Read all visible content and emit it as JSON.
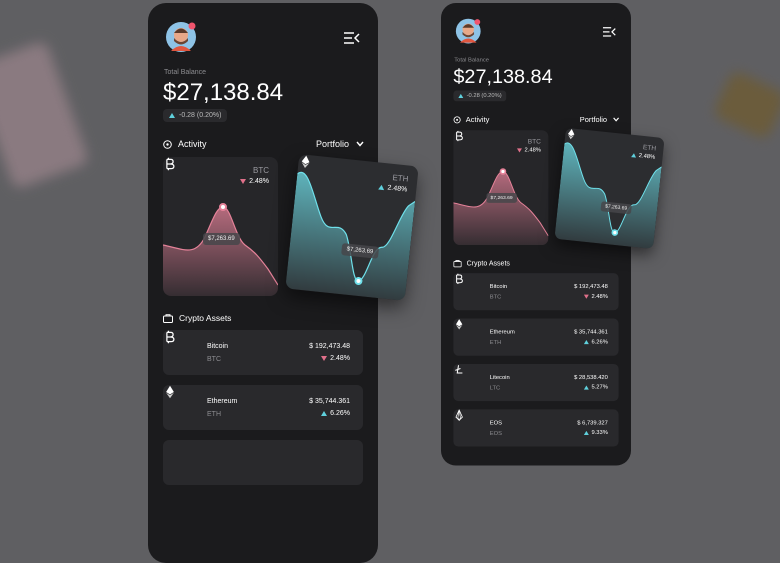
{
  "phones": [
    {
      "total_label": "Total Balance",
      "total": "$27,138.84",
      "change": "-0.28 (0.20%)",
      "activity": "Activity",
      "portfolio": "Portfolio",
      "cards": [
        {
          "symbol": "BTC",
          "change": "2.48%",
          "trend": "down",
          "price": "$7,263.69"
        },
        {
          "symbol": "ETH",
          "change": "2.48%",
          "trend": "up",
          "price": "$7,263.69"
        }
      ],
      "assets_title": "Crypto Assets",
      "assets": [
        {
          "name": "Bitcoin",
          "symbol": "BTC",
          "value": "$ 192,473.48",
          "change": "2.48%",
          "trend": "down"
        },
        {
          "name": "Ethereum",
          "symbol": "ETH",
          "value": "$ 35,744.361",
          "change": "6.26%",
          "trend": "up"
        }
      ]
    },
    {
      "total_label": "Total Balance",
      "total": "$27,138.84",
      "change": "-0.28 (0.20%)",
      "activity": "Activity",
      "portfolio": "Portfolio",
      "cards": [
        {
          "symbol": "BTC",
          "change": "2.48%",
          "trend": "down",
          "price": "$7,263.69"
        },
        {
          "symbol": "ETH",
          "change": "2.48%",
          "trend": "up",
          "price": "$7,263.69"
        }
      ],
      "assets_title": "Crypto Assets",
      "assets": [
        {
          "name": "Bitcoin",
          "symbol": "BTC",
          "value": "$ 192,473.48",
          "change": "2.48%",
          "trend": "down"
        },
        {
          "name": "Ethereum",
          "symbol": "ETH",
          "value": "$ 35,744.361",
          "change": "6.26%",
          "trend": "up"
        },
        {
          "name": "Litecoin",
          "symbol": "LTC",
          "value": "$ 28,538.420",
          "change": "5.27%",
          "trend": "up"
        },
        {
          "name": "EOS",
          "symbol": "EOS",
          "value": "$ 6,739.327",
          "change": "9.33%",
          "trend": "up"
        }
      ]
    }
  ]
}
